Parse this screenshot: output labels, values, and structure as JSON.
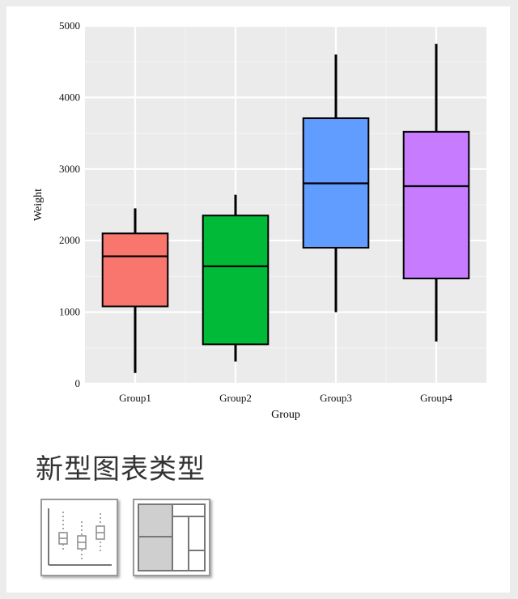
{
  "chart_data": {
    "type": "box",
    "xlabel": "Group",
    "ylabel": "Weight",
    "ylim": [
      0,
      5000
    ],
    "yticks": [
      0,
      1000,
      2000,
      3000,
      4000,
      5000
    ],
    "grid": true,
    "categories": [
      "Group1",
      "Group2",
      "Group3",
      "Group4"
    ],
    "boxes": [
      {
        "name": "Group1",
        "min": 150,
        "q1": 1080,
        "median": 1780,
        "q3": 2100,
        "max": 2450,
        "color": "#F8766D"
      },
      {
        "name": "Group2",
        "min": 310,
        "q1": 550,
        "median": 1640,
        "q3": 2350,
        "max": 2640,
        "color": "#00BA38"
      },
      {
        "name": "Group3",
        "min": 1000,
        "q1": 1900,
        "median": 2800,
        "q3": 3710,
        "max": 4600,
        "color": "#619CFF"
      },
      {
        "name": "Group4",
        "min": 590,
        "q1": 1470,
        "median": 2760,
        "q3": 3520,
        "max": 4750,
        "color": "#C77CFF"
      }
    ]
  },
  "section": {
    "title": "新型图表类型"
  },
  "thumbnails": [
    {
      "icon": "boxplot-icon"
    },
    {
      "icon": "treemap-icon"
    }
  ]
}
